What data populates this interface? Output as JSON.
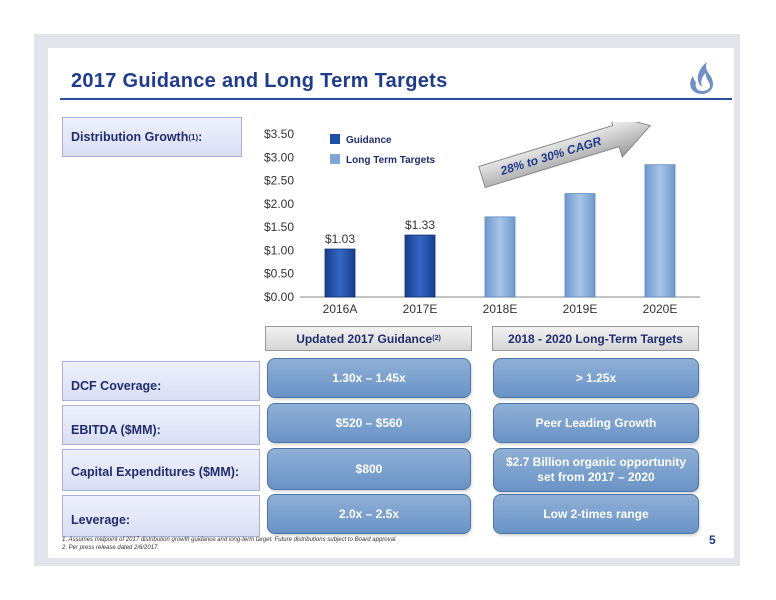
{
  "title": "2017 Guidance and Long Term Targets",
  "page_number": "5",
  "labels": {
    "distribution_growth": "Distribution Growth",
    "distribution_growth_sup": "(1)",
    "distribution_growth_colon": ":",
    "dcf_coverage": "DCF Coverage:",
    "ebitda": "EBITDA ($MM):",
    "capex": "Capital Expenditures ($MM):",
    "leverage": "Leverage:"
  },
  "headers": {
    "guidance": "Updated 2017 Guidance",
    "guidance_sup": "(2)",
    "long_term": "2018 - 2020 Long-Term Targets"
  },
  "guidance_values": {
    "dcf": "1.30x – 1.45x",
    "ebitda": "$520 – $560",
    "capex": "$800",
    "leverage": "2.0x – 2.5x"
  },
  "long_term_values": {
    "dcf": "> 1.25x",
    "ebitda": "Peer Leading Growth",
    "capex_line1": "$2.7 Billion organic opportunity",
    "capex_line2": "set from 2017 – 2020",
    "leverage": "Low 2-times range"
  },
  "footnotes": [
    "1.  Assumes midpoint of 2017 distribution growth guidance and long-term target. Future distributions subject to Board approval.",
    "2.  Per press release dated 2/6/2017."
  ],
  "chart_data": {
    "type": "bar",
    "categories": [
      "2016A",
      "2017E",
      "2018E",
      "2019E",
      "2020E"
    ],
    "values": [
      1.03,
      1.33,
      1.72,
      2.22,
      2.84
    ],
    "data_labels": [
      "$1.03",
      "$1.33",
      "",
      "",
      ""
    ],
    "series_type": [
      "Guidance",
      "Guidance",
      "Long Term Targets",
      "Long Term Targets",
      "Long Term Targets"
    ],
    "legend": [
      "Guidance",
      "Long Term Targets"
    ],
    "y_ticks": [
      "$0.00",
      "$0.50",
      "$1.00",
      "$1.50",
      "$2.00",
      "$2.50",
      "$3.00",
      "$3.50"
    ],
    "ylim": [
      0,
      3.5
    ],
    "annotation": "28% to 30% CAGR",
    "colors": {
      "Guidance": "#1f4fa8",
      "Long Term Targets": "#7fa7d6"
    }
  }
}
